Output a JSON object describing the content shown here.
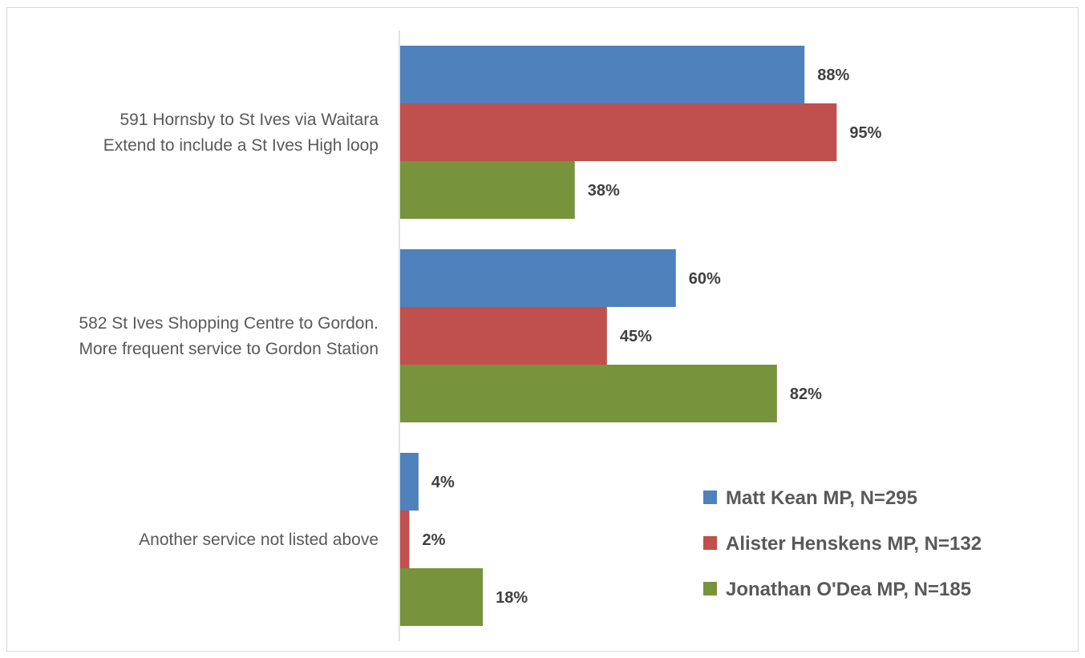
{
  "chart_data": {
    "type": "bar",
    "orientation": "horizontal",
    "title": "",
    "xlabel": "",
    "ylabel": "",
    "categories": [
      [
        "591 Hornsby to St Ives via Waitara",
        "Extend to include a St Ives High loop"
      ],
      [
        "582 St Ives Shopping Centre to Gordon.",
        "More frequent service to Gordon Station"
      ],
      [
        "Another service not listed above"
      ]
    ],
    "series": [
      {
        "name": "Matt Kean MP, N=295",
        "color": "#4f81bd",
        "values": [
          88,
          60,
          4
        ],
        "labels": [
          "88%",
          "60%",
          "4%"
        ]
      },
      {
        "name": "Alister Henskens MP, N=132",
        "color": "#c0504d",
        "values": [
          95,
          45,
          2
        ],
        "labels": [
          "95%",
          "45%",
          "2%"
        ]
      },
      {
        "name": "Jonathan O'Dea MP, N=185",
        "color": "#77933c",
        "values": [
          38,
          82,
          18
        ],
        "labels": [
          "38%",
          "82%",
          "18%"
        ]
      }
    ],
    "value_unit": "%",
    "xlim": [
      0,
      100
    ],
    "grid": false,
    "legend_position": "bottom-right"
  }
}
